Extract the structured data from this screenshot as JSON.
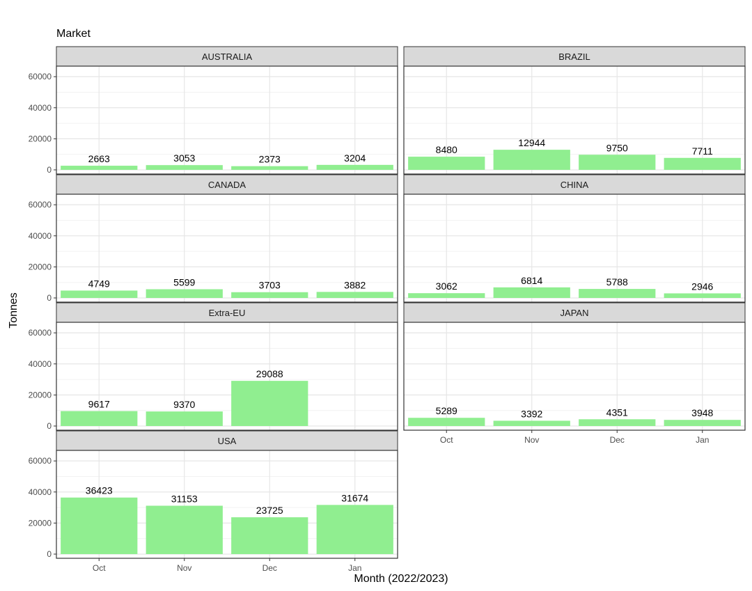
{
  "chart_data": {
    "type": "bar",
    "facet_label": "Market",
    "xlabel": "Month (2022/2023)",
    "ylabel": "Tonnes",
    "categories": [
      "Oct",
      "Nov",
      "Dec",
      "Jan"
    ],
    "ylim": [
      0,
      65000
    ],
    "yticks": [
      0,
      20000,
      40000,
      60000
    ],
    "ytick_labels": [
      "0",
      "20000",
      "40000",
      "60000"
    ],
    "grid": true,
    "bar_color": "#90EE90",
    "panel_border_color": "#333333",
    "strip_fill": "#d9d9d9",
    "panels": [
      {
        "name": "AUSTRALIA",
        "values": [
          2663,
          3053,
          2373,
          3204
        ]
      },
      {
        "name": "BRAZIL",
        "values": [
          8480,
          12944,
          9750,
          7711
        ]
      },
      {
        "name": "CANADA",
        "values": [
          4749,
          5599,
          3703,
          3882
        ]
      },
      {
        "name": "CHINA",
        "values": [
          3062,
          6814,
          5788,
          2946
        ]
      },
      {
        "name": "Extra-EU",
        "values": [
          9617,
          9370,
          29088,
          null
        ]
      },
      {
        "name": "JAPAN",
        "values": [
          5289,
          3392,
          4351,
          3948
        ]
      },
      {
        "name": "USA",
        "values": [
          36423,
          31153,
          23725,
          31674
        ]
      }
    ]
  }
}
